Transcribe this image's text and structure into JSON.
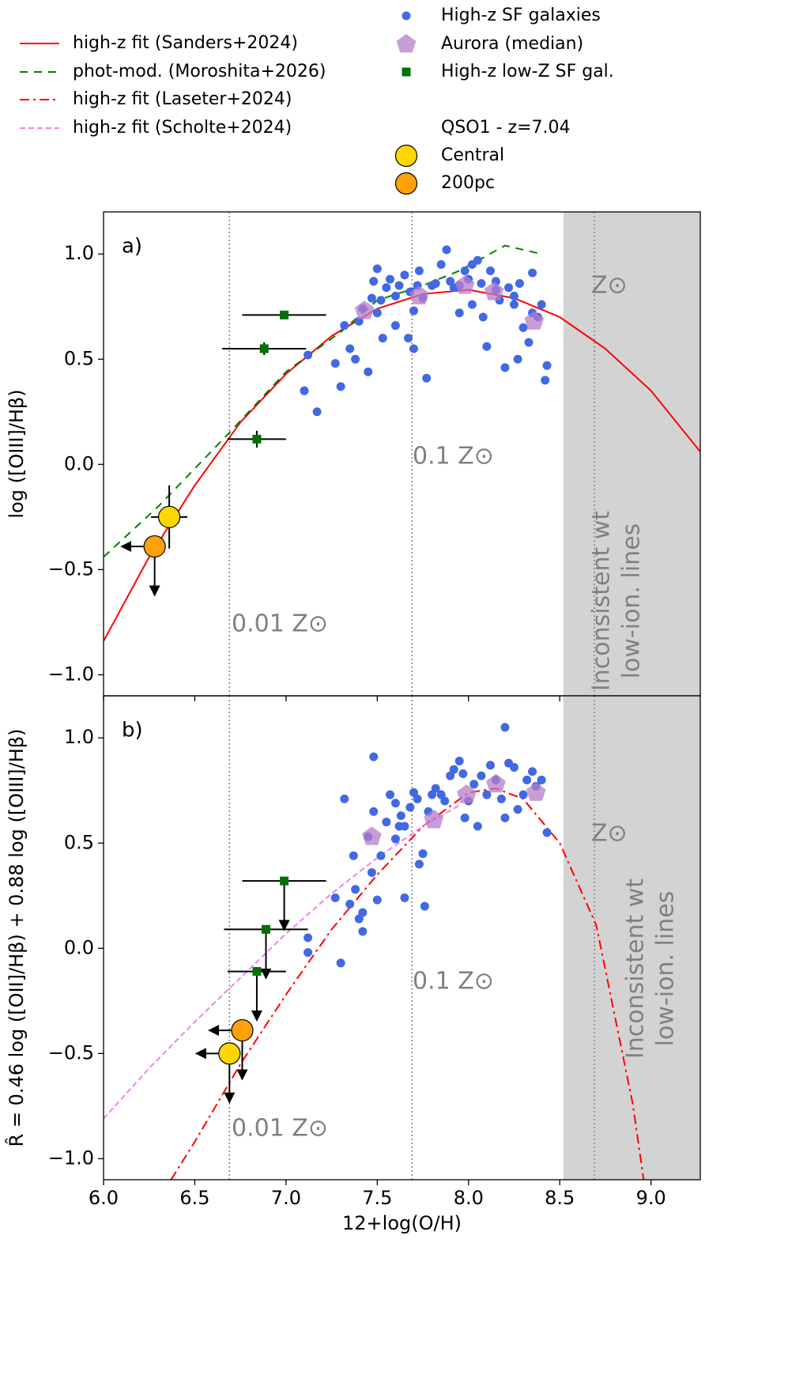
{
  "chart_data": [
    {
      "type": "line",
      "panel_label": "a)",
      "legend_title": "QSO1 - z=7.04",
      "ylabel": "log ([OIII]/Hβ)",
      "xlim": [
        6.0,
        9.27
      ],
      "ylim": [
        -1.1,
        1.2
      ],
      "xticks": [
        6,
        6.5,
        7,
        7.5,
        8,
        8.5,
        9
      ],
      "yticks": [
        {
          "value": 1,
          "label": "1.0"
        },
        0.5,
        {
          "value": 0,
          "label": "0.0"
        },
        {
          "value": -0.5,
          "label": "−0.5"
        },
        {
          "value": -1,
          "label": "−1.0"
        }
      ],
      "vlines": [
        6.69,
        7.69,
        8.69
      ],
      "shade_x": [
        8.52,
        9.27
      ],
      "annotations": [
        "0.01 Z⊙",
        "0.1 Z⊙",
        "Z⊙",
        "Inconsistent wt",
        "low-ion. lines"
      ],
      "series": [
        {
          "name": "high-z fit (Sanders+2024)",
          "kind": "line",
          "linestyle": "solid",
          "color": "#ff0000",
          "x": [
            6.0,
            6.25,
            6.5,
            6.75,
            7.0,
            7.25,
            7.5,
            7.75,
            8.0,
            8.25,
            8.5,
            8.75,
            9.0,
            9.27
          ],
          "values": [
            -0.84,
            -0.44,
            -0.1,
            0.2,
            0.43,
            0.61,
            0.74,
            0.81,
            0.83,
            0.79,
            0.7,
            0.55,
            0.35,
            0.06
          ]
        },
        {
          "name": "phot-mod. (Moroshita+2026)",
          "kind": "line",
          "linestyle": "dashed",
          "color": "#008000",
          "x": [
            6.0,
            6.3,
            6.7,
            7.0,
            7.3,
            7.5,
            7.75,
            7.95,
            8.2,
            8.4
          ],
          "values": [
            -0.44,
            -0.2,
            0.16,
            0.44,
            0.63,
            0.78,
            0.85,
            0.92,
            1.04,
            1.0
          ]
        },
        {
          "name": "High-z SF galaxies",
          "kind": "scatter",
          "marker": "circle",
          "color": "#4169e1",
          "x": [
            7.12,
            7.1,
            7.17,
            7.27,
            7.3,
            7.32,
            7.35,
            7.38,
            7.4,
            7.42,
            7.45,
            7.47,
            7.48,
            7.5,
            7.5,
            7.52,
            7.53,
            7.55,
            7.57,
            7.6,
            7.6,
            7.62,
            7.65,
            7.67,
            7.68,
            7.7,
            7.7,
            7.72,
            7.73,
            7.75,
            7.77,
            7.8,
            7.82,
            7.85,
            7.88,
            7.9,
            7.92,
            7.95,
            7.98,
            8.0,
            8.02,
            8.05,
            8.07,
            8.08,
            8.1,
            8.12,
            8.15,
            8.17,
            8.2,
            8.22,
            8.25,
            8.27,
            8.28,
            8.3,
            8.33,
            8.35,
            8.35,
            8.38,
            8.4,
            8.42,
            8.43,
            8.15,
            8.25,
            7.95,
            8.02
          ],
          "values": [
            0.52,
            0.35,
            0.25,
            0.48,
            0.37,
            0.66,
            0.55,
            0.5,
            0.68,
            0.74,
            0.44,
            0.79,
            0.87,
            0.93,
            0.72,
            0.78,
            0.6,
            0.84,
            0.88,
            0.66,
            0.8,
            0.85,
            0.9,
            0.6,
            0.82,
            0.73,
            0.55,
            0.85,
            0.92,
            0.79,
            0.41,
            0.85,
            0.86,
            0.95,
            1.02,
            0.87,
            0.84,
            0.72,
            0.92,
            0.88,
            0.76,
            0.97,
            0.86,
            0.7,
            0.56,
            0.92,
            0.83,
            0.78,
            0.46,
            0.84,
            0.8,
            0.5,
            0.86,
            0.65,
            0.58,
            0.72,
            0.91,
            0.7,
            0.76,
            0.4,
            0.47,
            0.87,
            0.76,
            0.85,
            0.95
          ]
        },
        {
          "name": "Aurora (median)",
          "kind": "scatter",
          "marker": "pentagon",
          "color": "#b57cc8",
          "x": [
            7.43,
            7.73,
            7.98,
            8.14,
            8.36
          ],
          "values": [
            0.73,
            0.8,
            0.85,
            0.82,
            0.68
          ]
        },
        {
          "name": "High-z low-Z SF gal.",
          "kind": "scatter",
          "marker": "square",
          "color": "#007000",
          "x": [
            6.99,
            6.88,
            6.84
          ],
          "values": [
            0.71,
            0.55,
            0.12
          ],
          "xerr": [
            0.23,
            0.23,
            0.16
          ],
          "yerr": [
            0.02,
            0.03,
            0.04
          ]
        },
        {
          "name": "Central",
          "kind": "scatter",
          "marker": "big",
          "color": "#ffd700",
          "x": [
            6.36
          ],
          "values": [
            -0.25
          ],
          "xerr": [
            0.1
          ],
          "yerr": [
            0.15
          ]
        },
        {
          "name": "200pc",
          "kind": "scatter",
          "marker": "big",
          "color": "#ffa10a",
          "x": [
            6.28
          ],
          "values": [
            -0.39
          ],
          "upper_limit": true,
          "x_upper_limit": true
        }
      ]
    },
    {
      "type": "line",
      "panel_label": "b)",
      "ylabel": "R̂ = 0.46 log ([OII]/Hβ) + 0.88 log ([OIII]/Hβ)",
      "xlabel": "12+log(O/H)",
      "xlim": [
        6.0,
        9.27
      ],
      "ylim": [
        -1.1,
        1.2
      ],
      "xticks": [
        {
          "value": 6,
          "label": "6.0"
        },
        6.5,
        {
          "value": 7,
          "label": "7.0"
        },
        7.5,
        {
          "value": 8,
          "label": "8.0"
        },
        8.5,
        {
          "value": 9,
          "label": "9.0"
        }
      ],
      "yticks": [
        {
          "value": 1,
          "label": "1.0"
        },
        0.5,
        {
          "value": 0,
          "label": "0.0"
        },
        {
          "value": -0.5,
          "label": "−0.5"
        },
        {
          "value": -1,
          "label": "−1.0"
        }
      ],
      "vlines": [
        6.69,
        7.69,
        8.69
      ],
      "shade_x": [
        8.52,
        9.27
      ],
      "annotations": [
        "0.01 Z⊙",
        "0.1 Z⊙",
        "Z⊙",
        "Inconsistent wt",
        "low-ion. lines"
      ],
      "series": [
        {
          "name": "high-z fit (Laseter+2024)",
          "kind": "line",
          "linestyle": "dashdot",
          "color": "#ff0000",
          "x": [
            6.37,
            6.5,
            6.75,
            7.0,
            7.25,
            7.5,
            7.75,
            8.0,
            8.15,
            8.3,
            8.5,
            8.7,
            8.9,
            8.96
          ],
          "values": [
            -1.1,
            -0.92,
            -0.55,
            -0.22,
            0.09,
            0.35,
            0.58,
            0.74,
            0.76,
            0.71,
            0.5,
            0.11,
            -0.74,
            -1.1
          ]
        },
        {
          "name": "high-z fit (Scholte+2024)",
          "kind": "line",
          "linestyle": "dashed2",
          "color": "#ee82ee",
          "x": [
            6.0,
            6.25,
            6.5,
            6.75,
            7.0,
            7.25,
            7.5,
            7.75,
            7.95
          ],
          "values": [
            -0.81,
            -0.57,
            -0.35,
            -0.14,
            0.07,
            0.26,
            0.43,
            0.58,
            0.68
          ]
        },
        {
          "kind": "scatter",
          "marker": "circle",
          "color": "#4169e1",
          "x": [
            7.12,
            7.12,
            7.27,
            7.3,
            7.32,
            7.35,
            7.37,
            7.38,
            7.4,
            7.42,
            7.42,
            7.45,
            7.47,
            7.48,
            7.48,
            7.5,
            7.52,
            7.55,
            7.57,
            7.6,
            7.6,
            7.63,
            7.65,
            7.65,
            7.68,
            7.7,
            7.72,
            7.73,
            7.75,
            7.76,
            7.78,
            7.8,
            7.82,
            7.85,
            7.87,
            7.9,
            7.92,
            7.95,
            7.97,
            7.98,
            8.0,
            8.03,
            8.05,
            8.07,
            8.1,
            8.12,
            8.15,
            8.18,
            8.2,
            8.2,
            8.22,
            8.25,
            8.27,
            8.3,
            8.32,
            8.35,
            8.37,
            8.4,
            8.43,
            7.62
          ],
          "values": [
            0.05,
            -0.02,
            0.24,
            -0.07,
            0.71,
            0.21,
            0.44,
            0.28,
            0.14,
            0.08,
            0.17,
            0.53,
            0.36,
            0.91,
            0.65,
            0.23,
            0.44,
            0.6,
            0.73,
            0.52,
            0.69,
            0.63,
            0.58,
            0.24,
            0.67,
            0.74,
            0.71,
            0.4,
            0.45,
            0.2,
            0.65,
            0.73,
            0.76,
            0.73,
            0.7,
            0.82,
            0.85,
            0.89,
            0.83,
            0.62,
            0.7,
            0.78,
            0.58,
            0.82,
            0.73,
            0.87,
            0.8,
            0.71,
            1.05,
            0.62,
            0.88,
            0.86,
            0.66,
            0.73,
            0.8,
            0.84,
            0.77,
            0.8,
            0.55,
            0.58
          ]
        },
        {
          "kind": "scatter",
          "marker": "pentagon",
          "color": "#b57cc8",
          "x": [
            7.47,
            7.81,
            7.99,
            8.15,
            8.37
          ],
          "values": [
            0.53,
            0.61,
            0.73,
            0.78,
            0.74
          ]
        },
        {
          "kind": "scatter",
          "marker": "square",
          "color": "#007000",
          "x": [
            6.99,
            6.89,
            6.84
          ],
          "values": [
            0.32,
            0.09,
            -0.11
          ],
          "xerr": [
            0.23,
            0.23,
            0.16
          ],
          "upper_limit": true
        },
        {
          "kind": "scatter",
          "marker": "big",
          "color": "#ffd700",
          "x": [
            6.69
          ],
          "values": [
            -0.5
          ],
          "upper_limit": true,
          "x_upper_limit": true
        },
        {
          "kind": "scatter",
          "marker": "big",
          "color": "#ffa10a",
          "x": [
            6.76
          ],
          "values": [
            -0.39
          ],
          "upper_limit": true,
          "x_upper_limit": true
        }
      ]
    }
  ]
}
